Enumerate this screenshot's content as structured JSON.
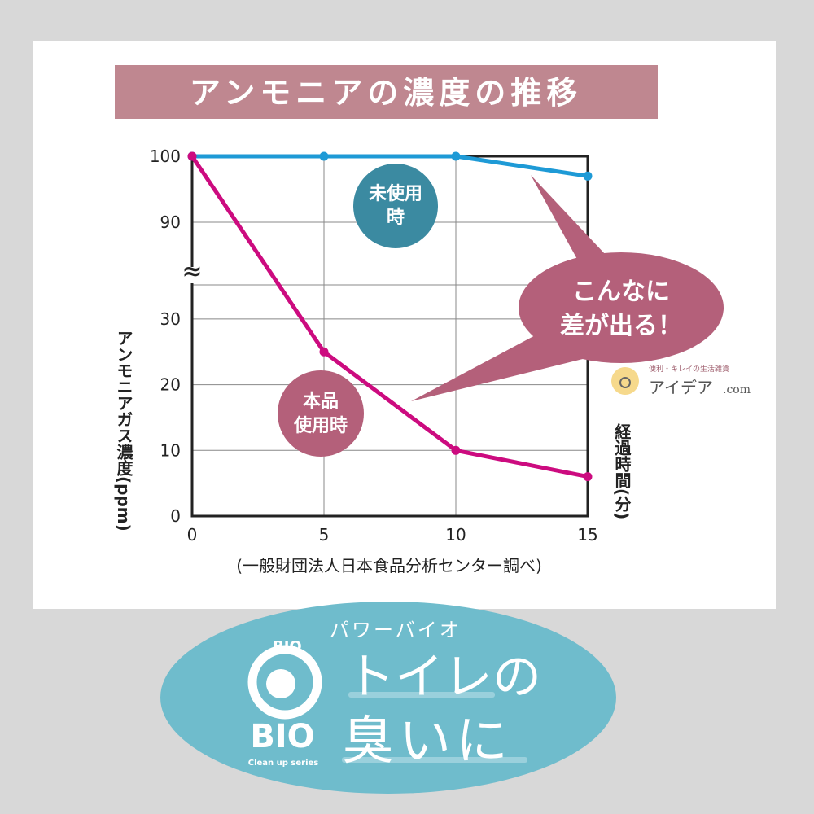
{
  "chart_data": {
    "type": "line",
    "title": "アンモニアの濃度の推移",
    "ylabel": "アンモニアガス濃度(ppm)",
    "xlabel": "経過時間(分)",
    "source_note": "(一般財団法人日本食品分析センター調べ)",
    "x": [
      0,
      5,
      10,
      15
    ],
    "x_ticks": [
      "0",
      "5",
      "10",
      "15"
    ],
    "y_ticks": [
      "0",
      "10",
      "20",
      "30",
      "90",
      "100"
    ],
    "ylim": [
      0,
      100
    ],
    "y_axis_break": [
      30,
      90
    ],
    "xlim": [
      0,
      15
    ],
    "grid": true,
    "series": [
      {
        "name": "未使用時",
        "values": [
          100,
          100,
          100,
          97
        ],
        "color": "#1e9ad6"
      },
      {
        "name": "本品使用時",
        "values": [
          100,
          25,
          10,
          6
        ],
        "color": "#cc0b7f"
      }
    ],
    "labels": {
      "unused_line1": "未使用時",
      "unused_line2": "",
      "product_line1": "本品",
      "product_line2": "使用時"
    },
    "callout_line1": "こんなに",
    "callout_line2": "差が出る！"
  },
  "branding": {
    "site_tagline": "便利・キレイの生活雑貨",
    "site_name": "アイデア",
    "site_suffix": ".com",
    "product_kana": "パワーバイオ",
    "headline_line1": "トイレの",
    "headline_line2": "臭いに",
    "logo_text": "BIO",
    "logo_small": "BIO",
    "logo_sub": "Clean up series"
  },
  "colors": {
    "title_band": "#bf8790",
    "callout": "#b4607a",
    "unused_badge": "#3b8aa1",
    "product_badge": "#b4607a",
    "banner": "#6fbccc"
  }
}
